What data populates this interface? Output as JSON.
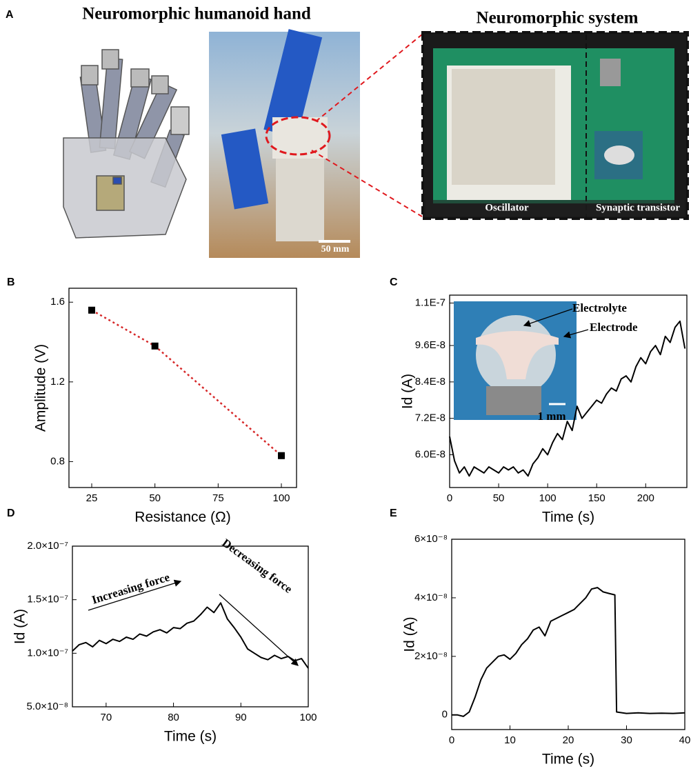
{
  "figure_a": {
    "panel": "A",
    "left_title": "Neuromorphic humanoid hand",
    "right_title": "Neuromorphic system",
    "scale_bar": "50 mm",
    "labels": [
      "Oscillator",
      "Synaptic transistor"
    ]
  },
  "chart_data": [
    {
      "type": "scatter",
      "panel": "B",
      "x_label": "Resistance (Ω)",
      "y_label": "Amplitude (V)",
      "x": [
        25,
        50,
        100
      ],
      "values": [
        1.56,
        1.38,
        0.83
      ],
      "errors": [
        0.015,
        0.012,
        0.015
      ],
      "color": "#000000",
      "fit_color": "#d62728",
      "xlim": [
        16,
        106
      ],
      "ylim": [
        0.67,
        1.67
      ],
      "xticks": [
        25,
        50,
        75,
        100
      ],
      "yticks": [
        0.8,
        1.2,
        1.6
      ]
    },
    {
      "type": "line",
      "panel": "C",
      "x_label": "Time (s)",
      "y_label": "Id (A)",
      "annotations": [
        "Electrolyte",
        "Electrode",
        "1 mm"
      ],
      "x": [
        0,
        5,
        10,
        15,
        20,
        25,
        30,
        35,
        40,
        45,
        50,
        55,
        60,
        65,
        70,
        75,
        80,
        85,
        90,
        95,
        100,
        105,
        110,
        115,
        120,
        125,
        130,
        135,
        140,
        145,
        150,
        155,
        160,
        165,
        170,
        175,
        180,
        185,
        190,
        195,
        200,
        205,
        210,
        215,
        220,
        225,
        230,
        235,
        240
      ],
      "values": [
        6.6e-08,
        5.8e-08,
        5.4e-08,
        5.6e-08,
        5.3e-08,
        5.6e-08,
        5.5e-08,
        5.4e-08,
        5.6e-08,
        5.5e-08,
        5.4e-08,
        5.6e-08,
        5.5e-08,
        5.6e-08,
        5.4e-08,
        5.5e-08,
        5.3e-08,
        5.7e-08,
        5.9e-08,
        6.2e-08,
        6e-08,
        6.4e-08,
        6.7e-08,
        6.5e-08,
        7.1e-08,
        6.8e-08,
        7.6e-08,
        7.2e-08,
        7.4e-08,
        7.6e-08,
        7.8e-08,
        7.7e-08,
        8e-08,
        8.2e-08,
        8.1e-08,
        8.5e-08,
        8.6e-08,
        8.4e-08,
        8.9e-08,
        9.2e-08,
        9e-08,
        9.4e-08,
        9.6e-08,
        9.3e-08,
        9.9e-08,
        9.7e-08,
        1.02e-07,
        1.04e-07,
        9.5e-08
      ],
      "color": "#000000",
      "xlim": [
        0,
        242
      ],
      "ylim": [
        4.92e-08,
        1.126e-07
      ],
      "xticks": [
        0,
        50,
        100,
        150,
        200
      ],
      "yticks": [
        {
          "value": 6e-08,
          "label": "6.0E-8"
        },
        {
          "value": 7.2e-08,
          "label": "7.2E-8"
        },
        {
          "value": 8.4e-08,
          "label": "8.4E-8"
        },
        {
          "value": 9.6e-08,
          "label": "9.6E-8"
        },
        {
          "value": 1.1e-07,
          "label": "1.1E-7"
        }
      ]
    },
    {
      "type": "line",
      "panel": "D",
      "x_label": "Time (s)",
      "y_label": "Id (A)",
      "annotations": [
        "Increasing force",
        "Decreasing force"
      ],
      "x": [
        65,
        66,
        67,
        68,
        69,
        70,
        71,
        72,
        73,
        74,
        75,
        76,
        77,
        78,
        79,
        80,
        81,
        82,
        83,
        84,
        85,
        86,
        87,
        88,
        89,
        90,
        91,
        92,
        93,
        94,
        95,
        96,
        97,
        98,
        99,
        100
      ],
      "values": [
        1.02e-07,
        1.08e-07,
        1.1e-07,
        1.06e-07,
        1.12e-07,
        1.09e-07,
        1.13e-07,
        1.11e-07,
        1.15e-07,
        1.13e-07,
        1.18e-07,
        1.16e-07,
        1.2e-07,
        1.22e-07,
        1.19e-07,
        1.24e-07,
        1.23e-07,
        1.28e-07,
        1.3e-07,
        1.36e-07,
        1.43e-07,
        1.38e-07,
        1.47e-07,
        1.32e-07,
        1.24e-07,
        1.15e-07,
        1.04e-07,
        1e-07,
        9.6e-08,
        9.4e-08,
        9.8e-08,
        9.5e-08,
        9.7e-08,
        9.3e-08,
        9.5e-08,
        8.6e-08
      ],
      "color": "#000000",
      "xlim": [
        65,
        100
      ],
      "ylim": [
        5e-08,
        2e-07
      ],
      "xticks": [
        70,
        80,
        90,
        100
      ],
      "yticks": [
        {
          "value": 5e-08,
          "label": "5.0×10⁻⁸"
        },
        {
          "value": 1e-07,
          "label": "1.0×10⁻⁷"
        },
        {
          "value": 1.5e-07,
          "label": "1.5×10⁻⁷"
        },
        {
          "value": 2e-07,
          "label": "2.0×10⁻⁷"
        }
      ]
    },
    {
      "type": "line",
      "panel": "E",
      "x_label": "Time (s)",
      "y_label": "Id (A)",
      "x": [
        0,
        1,
        2,
        3,
        4,
        5,
        6,
        7,
        8,
        9,
        10,
        11,
        12,
        13,
        14,
        15,
        16,
        17,
        18,
        19,
        20,
        21,
        22,
        23,
        24,
        25,
        26,
        27,
        28,
        28.3,
        29,
        30,
        32,
        34,
        36,
        38,
        40
      ],
      "values": [
        0,
        0,
        -5e-10,
        1e-09,
        6e-09,
        1.2e-08,
        1.6e-08,
        1.8e-08,
        2e-08,
        2.05e-08,
        1.9e-08,
        2.1e-08,
        2.4e-08,
        2.6e-08,
        2.9e-08,
        3e-08,
        2.7e-08,
        3.2e-08,
        3.3e-08,
        3.4e-08,
        3.5e-08,
        3.6e-08,
        3.8e-08,
        4e-08,
        4.3e-08,
        4.35e-08,
        4.2e-08,
        4.15e-08,
        4.1e-08,
        1e-09,
        8e-10,
        5e-10,
        7e-10,
        5e-10,
        6e-10,
        5e-10,
        7e-10
      ],
      "color": "#000000",
      "xlim": [
        0,
        40
      ],
      "ylim": [
        -5e-09,
        6e-08
      ],
      "xticks": [
        0,
        10,
        20,
        30,
        40
      ],
      "yticks": [
        0,
        {
          "value": 2e-08,
          "label": "2×10⁻⁸"
        },
        {
          "value": 4e-08,
          "label": "4×10⁻⁸"
        },
        {
          "value": 6e-08,
          "label": "6×10⁻⁸"
        }
      ]
    }
  ]
}
